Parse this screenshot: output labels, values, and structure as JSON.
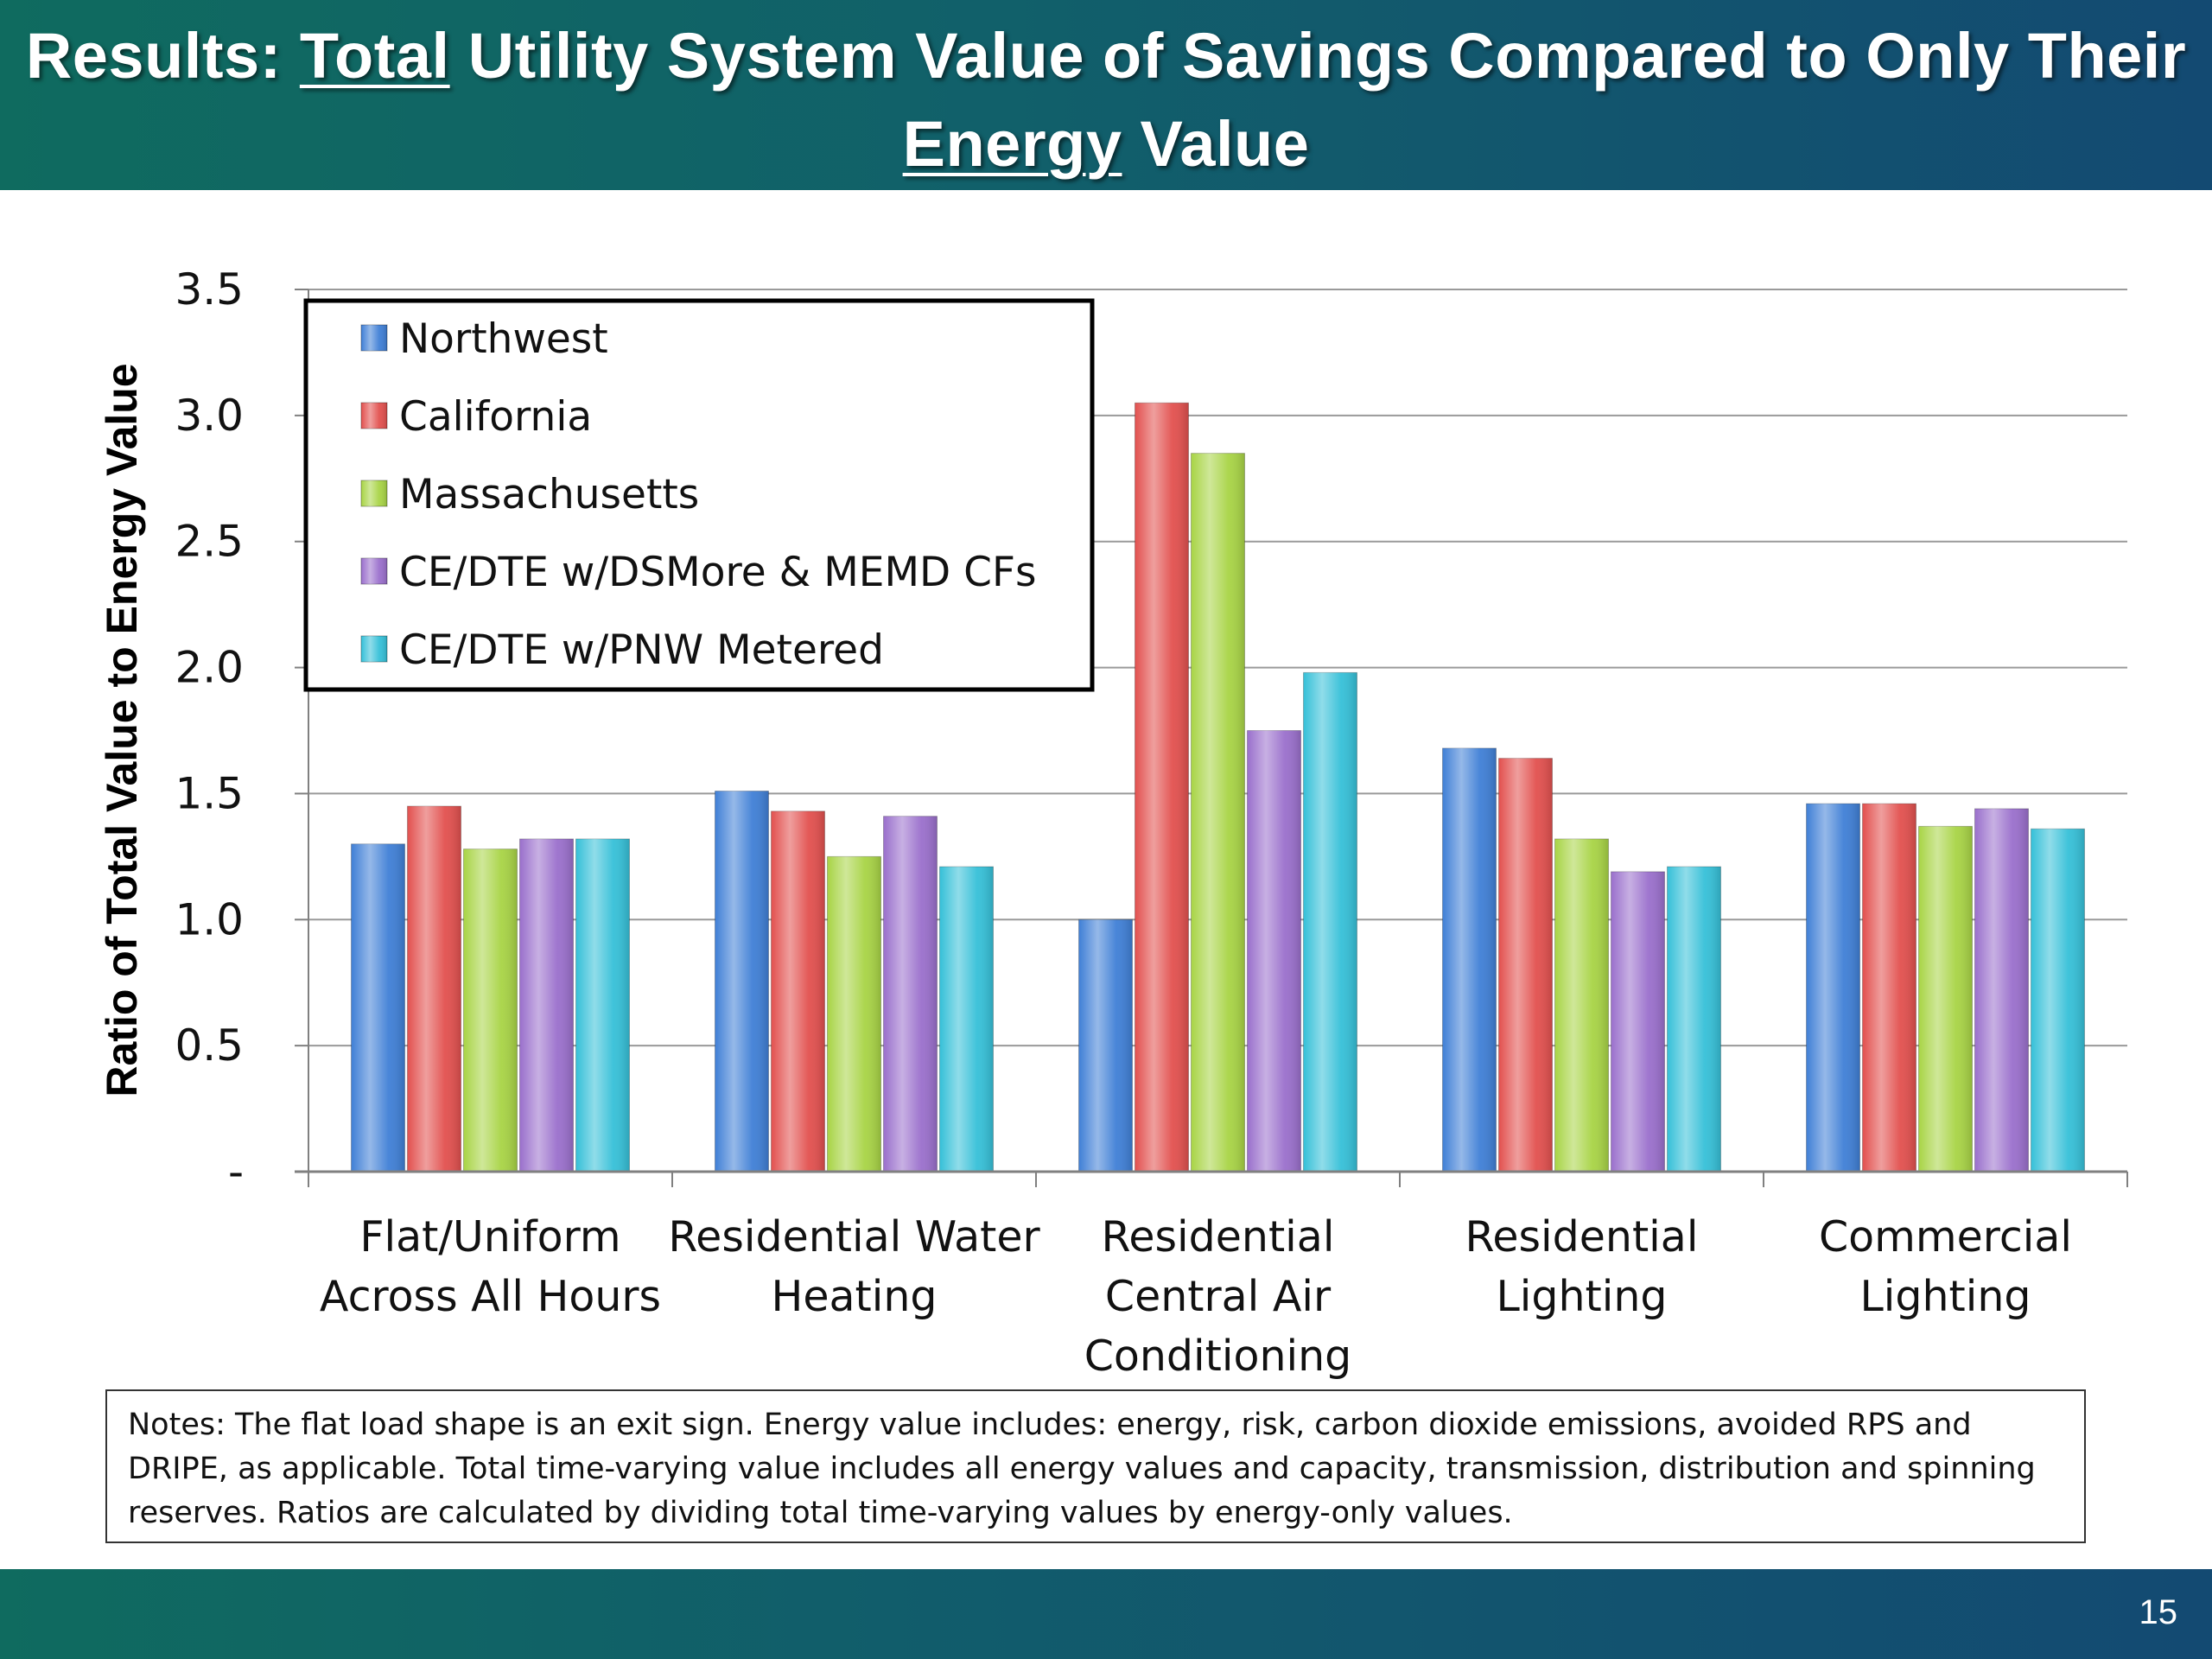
{
  "slide": {
    "title_prefix": "Results: ",
    "title_u1": "Total",
    "title_mid": " Utility System Value of Savings Compared to Only Their ",
    "title_u2": "Energy",
    "title_suffix": " Value",
    "notes": "Notes: The flat load shape is an exit sign. Energy value includes: energy, risk, carbon dioxide emissions, avoided RPS and DRIPE, as applicable. Total time-varying value includes all energy values and capacity, transmission, distribution and spinning reserves. Ratios are calculated by dividing total time-varying values by energy-only values.",
    "page_number": "15"
  },
  "colors": {
    "series": [
      "#3f7fd6",
      "#e2504e",
      "#a8d445",
      "#9a6fcc",
      "#35c0d8"
    ]
  },
  "chart_data": {
    "type": "bar",
    "ylabel": "Ratio of Total Value to Energy Value",
    "xlabel": "",
    "ylim": [
      0,
      3.5
    ],
    "yticks": [
      {
        "value": 0,
        "label": "-"
      },
      {
        "value": 0.5,
        "label": "0.5"
      },
      {
        "value": 1.0,
        "label": "1.0"
      },
      {
        "value": 1.5,
        "label": "1.5"
      },
      {
        "value": 2.0,
        "label": "2.0"
      },
      {
        "value": 2.5,
        "label": "2.5"
      },
      {
        "value": 3.0,
        "label": "3.0"
      },
      {
        "value": 3.5,
        "label": "3.5"
      }
    ],
    "grid": true,
    "legend_position": "top-left",
    "categories": [
      [
        "Flat/Uniform",
        "Across All Hours"
      ],
      [
        "Residential Water",
        "Heating"
      ],
      [
        "Residential",
        "Central Air",
        "Conditioning"
      ],
      [
        "Residential",
        "Lighting"
      ],
      [
        "Commercial",
        "Lighting"
      ]
    ],
    "series": [
      {
        "name": "Northwest",
        "values": [
          1.3,
          1.51,
          1.0,
          1.68,
          1.46
        ]
      },
      {
        "name": "California",
        "values": [
          1.45,
          1.43,
          3.05,
          1.64,
          1.46
        ]
      },
      {
        "name": "Massachusetts",
        "values": [
          1.28,
          1.25,
          2.85,
          1.32,
          1.37
        ]
      },
      {
        "name": "CE/DTE w/DSMore & MEMD CFs",
        "values": [
          1.32,
          1.41,
          1.75,
          1.19,
          1.44
        ]
      },
      {
        "name": "CE/DTE w/PNW Metered",
        "values": [
          1.32,
          1.21,
          1.98,
          1.21,
          1.36
        ]
      }
    ]
  }
}
